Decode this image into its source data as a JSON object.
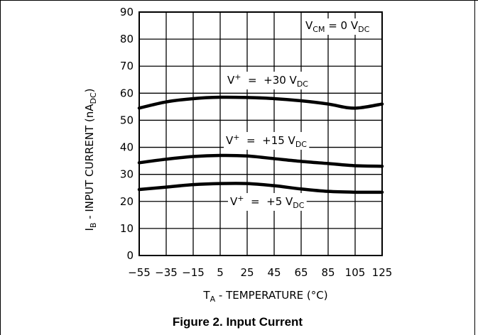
{
  "chart_data": {
    "type": "line",
    "ylabel_main": "I",
    "ylabel_sub": "B",
    "ylabel_rest": " - INPUT CURRENT (nA",
    "ylabel_unit_sub": "DC",
    "ylabel_close": ")",
    "xlabel_main": "T",
    "xlabel_sub": "A",
    "xlabel_rest": " - TEMPERATURE (°C)",
    "xlim": [
      -55,
      125
    ],
    "ylim": [
      0,
      90
    ],
    "x_ticks": [
      -55,
      -35,
      -15,
      5,
      25,
      45,
      65,
      85,
      105,
      125
    ],
    "y_ticks": [
      0,
      10,
      20,
      30,
      40,
      50,
      60,
      70,
      80,
      90
    ],
    "grid": true,
    "annotation": {
      "main": "V",
      "sub1": "CM",
      "mid": " = 0 V",
      "sub2": "DC"
    },
    "series": [
      {
        "label_prefix": "V",
        "label_sup": "+",
        "label_mid": "  =  +30 V",
        "label_sub": "DC",
        "x": [
          -55,
          -35,
          -15,
          5,
          25,
          45,
          65,
          85,
          100,
          110,
          125
        ],
        "y": [
          54.5,
          56.8,
          58.0,
          58.5,
          58.4,
          58.0,
          57.2,
          56.0,
          54.6,
          54.7,
          56.0
        ]
      },
      {
        "label_prefix": "V",
        "label_sup": "+",
        "label_mid": "  =  +15 V",
        "label_sub": "DC",
        "x": [
          -55,
          -35,
          -15,
          5,
          25,
          45,
          65,
          85,
          105,
          125
        ],
        "y": [
          34.3,
          35.6,
          36.6,
          37.0,
          36.8,
          35.8,
          34.8,
          34.0,
          33.2,
          33.0
        ]
      },
      {
        "label_prefix": "V",
        "label_sup": "+",
        "label_mid": "  =  +5 V",
        "label_sub": "DC",
        "x": [
          -55,
          -35,
          -15,
          5,
          25,
          45,
          65,
          85,
          105,
          125
        ],
        "y": [
          24.4,
          25.3,
          26.2,
          26.6,
          26.6,
          25.8,
          24.6,
          23.7,
          23.4,
          23.4
        ]
      }
    ]
  },
  "caption": "Figure 2. Input Current"
}
